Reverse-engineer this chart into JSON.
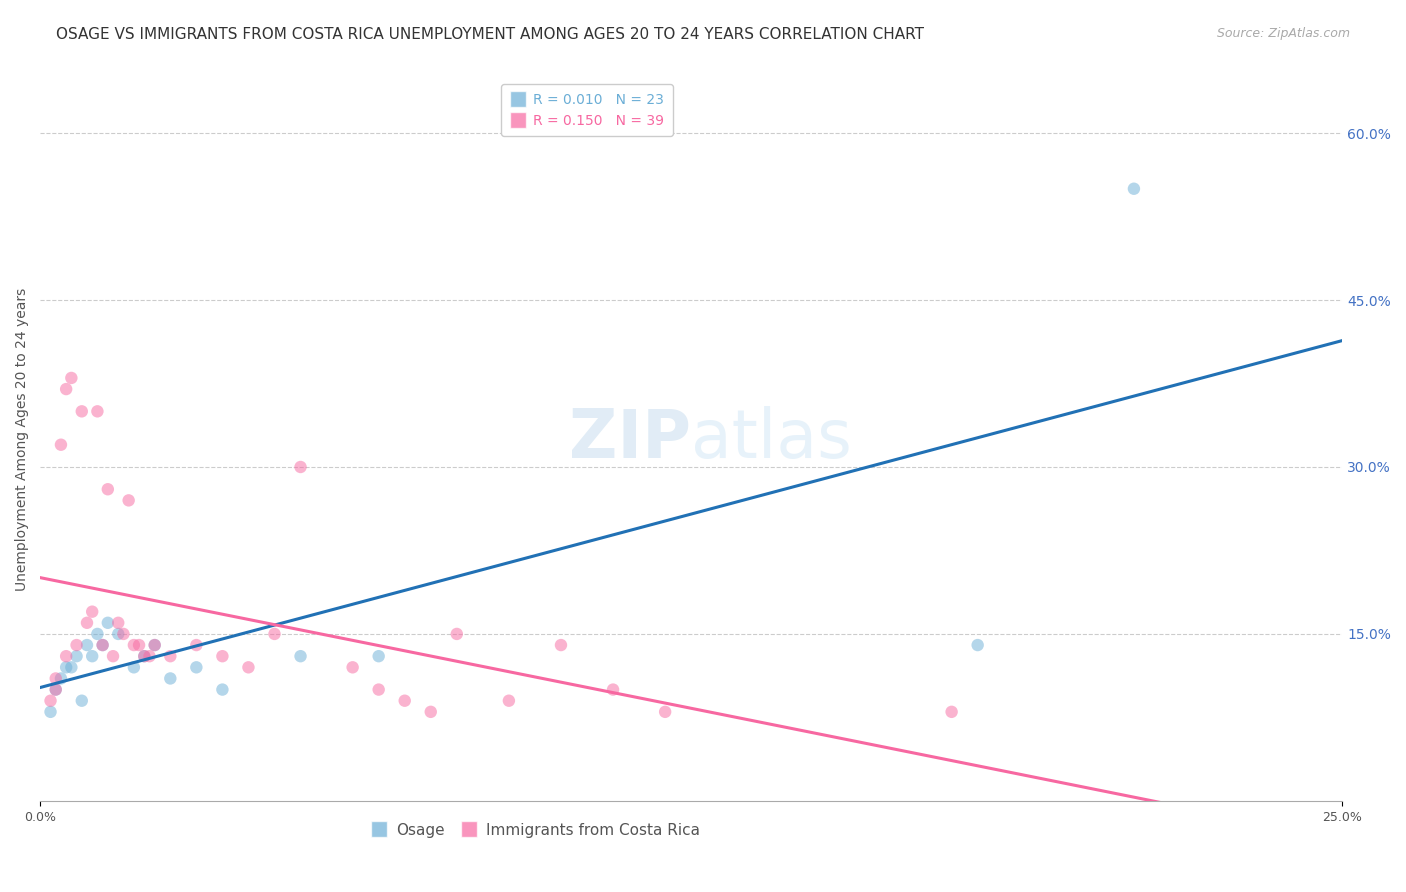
{
  "title": "OSAGE VS IMMIGRANTS FROM COSTA RICA UNEMPLOYMENT AMONG AGES 20 TO 24 YEARS CORRELATION CHART",
  "source_text": "Source: ZipAtlas.com",
  "ylabel": "Unemployment Among Ages 20 to 24 years",
  "right_yticks": [
    "60.0%",
    "45.0%",
    "30.0%",
    "15.0%"
  ],
  "right_ytick_vals": [
    0.6,
    0.45,
    0.3,
    0.15
  ],
  "xlim": [
    0.0,
    0.25
  ],
  "ylim": [
    0.0,
    0.65
  ],
  "watermark_zip": "ZIP",
  "watermark_atlas": "atlas",
  "osage_x": [
    0.002,
    0.003,
    0.004,
    0.005,
    0.006,
    0.007,
    0.008,
    0.009,
    0.01,
    0.011,
    0.012,
    0.013,
    0.015,
    0.018,
    0.02,
    0.022,
    0.025,
    0.03,
    0.035,
    0.05,
    0.065,
    0.18,
    0.21
  ],
  "osage_y": [
    0.08,
    0.1,
    0.11,
    0.12,
    0.12,
    0.13,
    0.09,
    0.14,
    0.13,
    0.15,
    0.14,
    0.16,
    0.15,
    0.12,
    0.13,
    0.14,
    0.11,
    0.12,
    0.1,
    0.13,
    0.13,
    0.14,
    0.55
  ],
  "cr_x": [
    0.002,
    0.003,
    0.003,
    0.004,
    0.005,
    0.005,
    0.006,
    0.007,
    0.008,
    0.009,
    0.01,
    0.011,
    0.012,
    0.013,
    0.014,
    0.015,
    0.016,
    0.017,
    0.018,
    0.019,
    0.02,
    0.021,
    0.022,
    0.025,
    0.03,
    0.035,
    0.04,
    0.045,
    0.05,
    0.06,
    0.065,
    0.07,
    0.075,
    0.08,
    0.09,
    0.1,
    0.11,
    0.12,
    0.175
  ],
  "cr_y": [
    0.09,
    0.1,
    0.11,
    0.32,
    0.13,
    0.37,
    0.38,
    0.14,
    0.35,
    0.16,
    0.17,
    0.35,
    0.14,
    0.28,
    0.13,
    0.16,
    0.15,
    0.27,
    0.14,
    0.14,
    0.13,
    0.13,
    0.14,
    0.13,
    0.14,
    0.13,
    0.12,
    0.15,
    0.3,
    0.12,
    0.1,
    0.09,
    0.08,
    0.15,
    0.09,
    0.14,
    0.1,
    0.08,
    0.08
  ],
  "osage_color": "#6baed6",
  "cr_color": "#f768a1",
  "osage_line_color": "#2171b5",
  "cr_line_color": "#f768a1",
  "background_color": "#ffffff",
  "grid_color": "#cccccc",
  "title_color": "#333333",
  "right_axis_color": "#4472c4",
  "scatter_size": 80,
  "scatter_alpha": 0.5,
  "title_fontsize": 11,
  "source_fontsize": 9,
  "axis_fontsize": 9,
  "legend_fontsize": 10,
  "watermark_fontsize": 48,
  "watermark_color": "#cde0f0",
  "watermark_alpha": 0.6
}
